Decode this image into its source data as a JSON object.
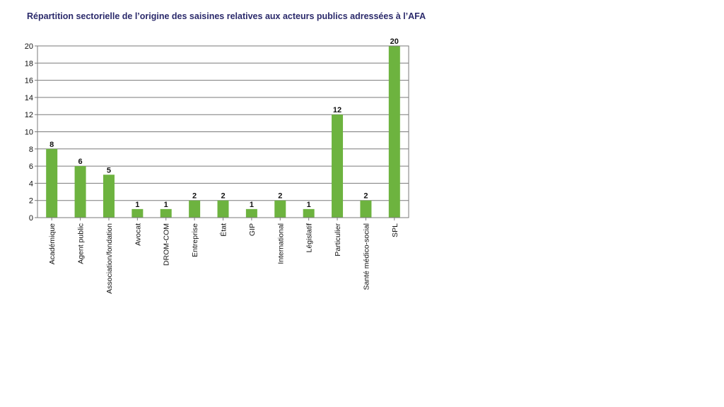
{
  "chart_data": {
    "type": "bar",
    "title": "Répartition sectorielle de l’origine des saisines relatives aux acteurs publics adressées à l’AFA",
    "xlabel": "",
    "ylabel": "",
    "categories": [
      "Académique",
      "Agent public",
      "Association/fondation",
      "Avocat",
      "DROM-COM",
      "Entreprise",
      "État",
      "GIP",
      "International",
      "Législatif",
      "Particulier",
      "Santé médico-social",
      "SPL"
    ],
    "values": [
      8,
      6,
      5,
      1,
      1,
      2,
      2,
      1,
      2,
      1,
      12,
      2,
      20
    ],
    "ylim": [
      0,
      20
    ],
    "yticks": [
      0,
      2,
      4,
      6,
      8,
      10,
      12,
      14,
      16,
      18,
      20
    ],
    "grid": true,
    "legend": "none",
    "bar_color": "#6db33f",
    "grid_color": "#7a7a7a"
  }
}
